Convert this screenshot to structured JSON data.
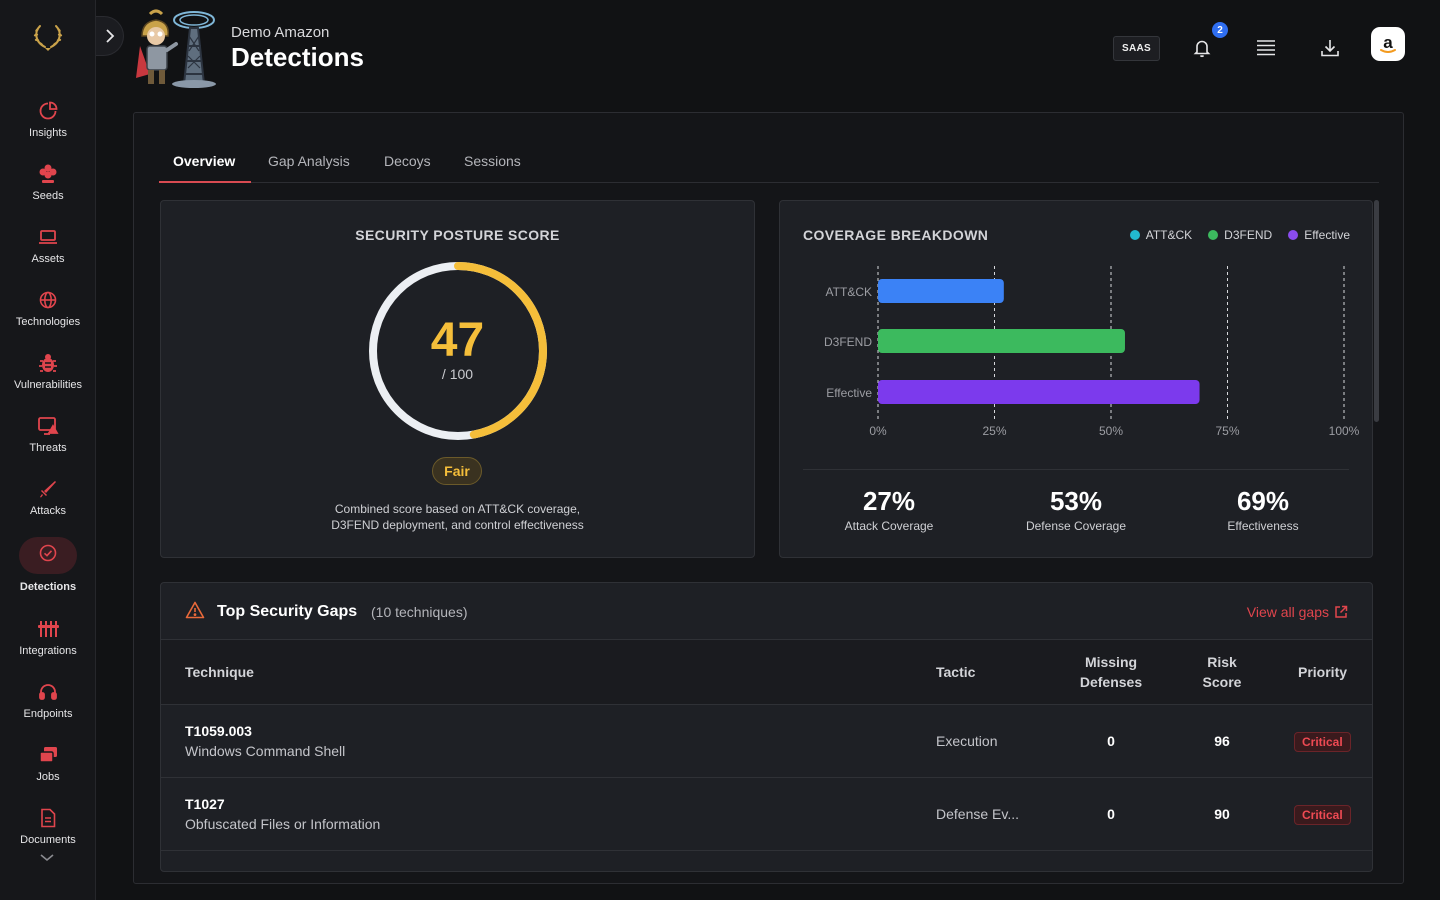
{
  "header": {
    "org_name": "Demo Amazon",
    "title": "Detections",
    "saas_label": "SAAS",
    "notification_count": "2"
  },
  "sidebar": {
    "items": [
      {
        "label": "Insights",
        "icon": "pie-chart-icon"
      },
      {
        "label": "Seeds",
        "icon": "seed-flower-icon"
      },
      {
        "label": "Assets",
        "icon": "laptop-icon"
      },
      {
        "label": "Technologies",
        "icon": "globe-icon"
      },
      {
        "label": "Vulnerabilities",
        "icon": "bug-icon"
      },
      {
        "label": "Threats",
        "icon": "monitor-alert-icon"
      },
      {
        "label": "Attacks",
        "icon": "sword-icon"
      },
      {
        "label": "Detections",
        "icon": "check-circle-icon"
      },
      {
        "label": "Integrations",
        "icon": "sliders-icon"
      },
      {
        "label": "Endpoints",
        "icon": "headset-icon"
      },
      {
        "label": "Jobs",
        "icon": "stack-icon"
      },
      {
        "label": "Documents",
        "icon": "document-icon"
      }
    ],
    "active": "Detections",
    "accent_color": "#e0454d"
  },
  "tabs": [
    "Overview",
    "Gap Analysis",
    "Decoys",
    "Sessions"
  ],
  "active_tab": "Overview",
  "posture": {
    "title": "SECURITY POSTURE SCORE",
    "score": "47",
    "max_label": "/ 100",
    "score_fraction": 0.47,
    "rating": "Fair",
    "desc_line1": "Combined score based on ATT&CK coverage,",
    "desc_line2": "D3FEND deployment, and control effectiveness",
    "color": "#f5be3a"
  },
  "coverage": {
    "title": "COVERAGE BREAKDOWN",
    "legend": [
      {
        "label": "ATT&CK",
        "color": "#22b8cf"
      },
      {
        "label": "D3FEND",
        "color": "#3cba5e"
      },
      {
        "label": "Effective",
        "color": "#8b4cf0"
      }
    ],
    "stats": [
      {
        "value": "27%",
        "label": "Attack Coverage"
      },
      {
        "value": "53%",
        "label": "Defense Coverage"
      },
      {
        "value": "69%",
        "label": "Effectiveness"
      }
    ]
  },
  "chart_data": {
    "type": "bar",
    "orientation": "horizontal",
    "categories": [
      "ATT&CK",
      "D3FEND",
      "Effective"
    ],
    "values": [
      27,
      53,
      69
    ],
    "colors": [
      "#3b82f6",
      "#3cba5e",
      "#7c3aed"
    ],
    "xlim": [
      0,
      100
    ],
    "xticks": [
      "0%",
      "25%",
      "50%",
      "75%",
      "100%"
    ],
    "grid": "dashed-vertical"
  },
  "gaps": {
    "title": "Top Security Gaps",
    "count_label": "(10 techniques)",
    "view_all_label": "View all gaps",
    "columns": {
      "technique": "Technique",
      "tactic": "Tactic",
      "missing_1": "Missing",
      "missing_2": "Defenses",
      "risk_1": "Risk",
      "risk_2": "Score",
      "priority": "Priority"
    },
    "rows": [
      {
        "code": "T1059.003",
        "name": "Windows Command Shell",
        "tactic": "Execution",
        "missing": "0",
        "risk": "96",
        "priority": "Critical"
      },
      {
        "code": "T1027",
        "name": "Obfuscated Files or Information",
        "tactic": "Defense Ev...",
        "missing": "0",
        "risk": "90",
        "priority": "Critical"
      }
    ]
  }
}
